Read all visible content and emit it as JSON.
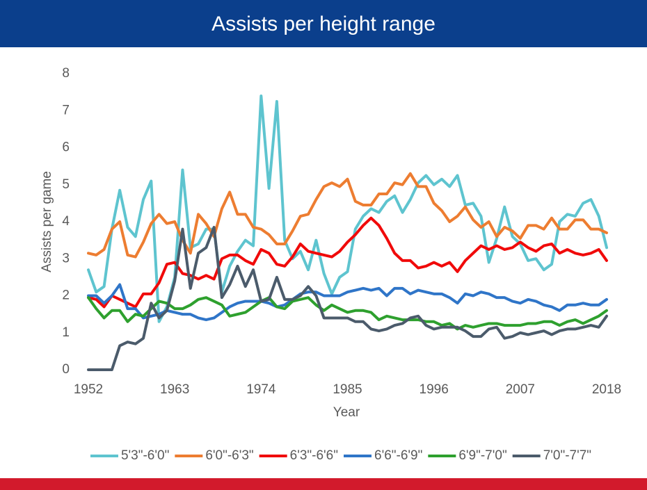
{
  "chart_data": {
    "type": "line",
    "title": "Assists per height range",
    "x_label": "Year",
    "y_label": "Assists per game",
    "x": [
      1952,
      1953,
      1954,
      1955,
      1956,
      1957,
      1958,
      1959,
      1960,
      1961,
      1962,
      1963,
      1964,
      1965,
      1966,
      1967,
      1968,
      1969,
      1970,
      1971,
      1972,
      1973,
      1974,
      1975,
      1976,
      1977,
      1978,
      1979,
      1980,
      1981,
      1982,
      1983,
      1984,
      1985,
      1986,
      1987,
      1988,
      1989,
      1990,
      1991,
      1992,
      1993,
      1994,
      1995,
      1996,
      1997,
      1998,
      1999,
      2000,
      2001,
      2002,
      2003,
      2004,
      2005,
      2006,
      2007,
      2008,
      2009,
      2010,
      2011,
      2012,
      2013,
      2014,
      2015,
      2016,
      2017,
      2018
    ],
    "xlim": [
      1952,
      2018
    ],
    "xticks": [
      1952,
      1963,
      1974,
      1985,
      1996,
      2007,
      2018
    ],
    "ylim": [
      0,
      8
    ],
    "yticks": [
      0,
      1,
      2,
      3,
      4,
      5,
      6,
      7,
      8
    ],
    "grid": false,
    "legend": "bottom",
    "series": [
      {
        "name": "5'3\"-6'0\"",
        "color": "#5ec4cf",
        "values": [
          2.7,
          2.1,
          2.25,
          3.8,
          4.85,
          3.85,
          3.6,
          4.6,
          5.1,
          1.3,
          1.7,
          2.5,
          5.4,
          3.3,
          3.4,
          3.8,
          3.8,
          2.1,
          2.8,
          3.2,
          3.5,
          3.35,
          7.4,
          4.9,
          7.25,
          3.5,
          3.0,
          3.2,
          2.7,
          3.5,
          2.6,
          2.05,
          2.5,
          2.65,
          3.8,
          4.15,
          4.35,
          4.25,
          4.55,
          4.7,
          4.25,
          4.6,
          5.05,
          5.25,
          5.0,
          5.15,
          4.95,
          5.25,
          4.45,
          4.5,
          4.15,
          2.9,
          3.55,
          4.4,
          3.6,
          3.4,
          2.95,
          3.0,
          2.7,
          2.85,
          4.0,
          4.2,
          4.15,
          4.5,
          4.6,
          4.15,
          3.3
        ]
      },
      {
        "name": "6'0\"-6'3\"",
        "color": "#ed7d31",
        "values": [
          3.15,
          3.1,
          3.25,
          3.8,
          4.0,
          3.1,
          3.05,
          3.45,
          3.95,
          4.2,
          3.95,
          4.0,
          3.5,
          3.15,
          4.2,
          3.95,
          3.6,
          4.35,
          4.8,
          4.2,
          4.2,
          3.85,
          3.8,
          3.65,
          3.4,
          3.4,
          3.75,
          4.15,
          4.2,
          4.6,
          4.95,
          5.05,
          4.95,
          5.15,
          4.55,
          4.45,
          4.45,
          4.75,
          4.75,
          5.05,
          5.0,
          5.3,
          4.95,
          4.95,
          4.5,
          4.3,
          4.0,
          4.15,
          4.4,
          4.05,
          3.85,
          4.0,
          3.6,
          3.85,
          3.75,
          3.55,
          3.9,
          3.9,
          3.8,
          4.1,
          3.8,
          3.8,
          4.05,
          4.05,
          3.8,
          3.8,
          3.7
        ]
      },
      {
        "name": "6'3\"-6'6\"",
        "color": "#f00a0a",
        "values": [
          1.95,
          1.9,
          1.7,
          2.0,
          1.9,
          1.8,
          1.7,
          2.05,
          2.05,
          2.35,
          2.85,
          2.9,
          2.6,
          2.55,
          2.45,
          2.55,
          2.45,
          3.0,
          3.1,
          3.1,
          2.95,
          2.85,
          3.25,
          3.15,
          2.85,
          2.8,
          3.05,
          3.4,
          3.2,
          3.15,
          3.1,
          3.05,
          3.2,
          3.45,
          3.65,
          3.9,
          4.1,
          3.9,
          3.55,
          3.15,
          2.95,
          2.95,
          2.75,
          2.8,
          2.9,
          2.8,
          2.9,
          2.65,
          2.95,
          3.15,
          3.35,
          3.25,
          3.35,
          3.25,
          3.3,
          3.45,
          3.3,
          3.2,
          3.35,
          3.4,
          3.15,
          3.25,
          3.15,
          3.1,
          3.15,
          3.25,
          2.95
        ]
      },
      {
        "name": "6'6\"-6'9\"",
        "color": "#2f75c8",
        "values": [
          2.0,
          2.0,
          1.8,
          2.0,
          2.3,
          1.65,
          1.65,
          1.4,
          1.45,
          1.5,
          1.6,
          1.55,
          1.5,
          1.5,
          1.4,
          1.35,
          1.4,
          1.55,
          1.7,
          1.8,
          1.85,
          1.85,
          1.85,
          1.8,
          1.7,
          1.75,
          1.9,
          2.05,
          2.1,
          2.1,
          2.0,
          2.0,
          2.0,
          2.1,
          2.15,
          2.2,
          2.15,
          2.2,
          2.0,
          2.2,
          2.2,
          2.05,
          2.15,
          2.1,
          2.05,
          2.05,
          1.95,
          1.8,
          2.05,
          2.0,
          2.1,
          2.05,
          1.95,
          1.95,
          1.85,
          1.8,
          1.9,
          1.85,
          1.75,
          1.7,
          1.6,
          1.75,
          1.75,
          1.8,
          1.75,
          1.75,
          1.9
        ]
      },
      {
        "name": "6'9\"-7'0\"",
        "color": "#2ea02e",
        "values": [
          1.95,
          1.65,
          1.4,
          1.6,
          1.6,
          1.3,
          1.5,
          1.45,
          1.65,
          1.85,
          1.8,
          1.65,
          1.65,
          1.75,
          1.9,
          1.95,
          1.85,
          1.75,
          1.45,
          1.5,
          1.55,
          1.7,
          1.85,
          1.95,
          1.7,
          1.65,
          1.85,
          1.9,
          1.95,
          1.75,
          1.6,
          1.75,
          1.65,
          1.55,
          1.6,
          1.6,
          1.55,
          1.35,
          1.45,
          1.4,
          1.35,
          1.35,
          1.35,
          1.3,
          1.3,
          1.2,
          1.25,
          1.1,
          1.2,
          1.15,
          1.2,
          1.25,
          1.25,
          1.2,
          1.2,
          1.2,
          1.25,
          1.25,
          1.3,
          1.3,
          1.2,
          1.3,
          1.35,
          1.25,
          1.35,
          1.45,
          1.6
        ]
      },
      {
        "name": "7'0\"-7'7\"",
        "color": "#4b5b6b",
        "values": [
          0,
          0,
          0,
          0,
          0.65,
          0.75,
          0.7,
          0.85,
          1.8,
          1.4,
          1.6,
          2.4,
          3.8,
          2.2,
          3.15,
          3.3,
          3.85,
          1.95,
          2.3,
          2.8,
          2.25,
          2.7,
          1.85,
          1.9,
          2.5,
          1.9,
          1.9,
          2.0,
          2.25,
          2.0,
          1.4,
          1.4,
          1.4,
          1.4,
          1.3,
          1.3,
          1.1,
          1.05,
          1.1,
          1.2,
          1.25,
          1.4,
          1.45,
          1.2,
          1.1,
          1.15,
          1.15,
          1.15,
          1.05,
          0.9,
          0.9,
          1.1,
          1.15,
          0.85,
          0.9,
          1.0,
          0.95,
          1.0,
          1.05,
          0.95,
          1.05,
          1.1,
          1.1,
          1.15,
          1.2,
          1.15,
          1.45
        ]
      }
    ]
  }
}
